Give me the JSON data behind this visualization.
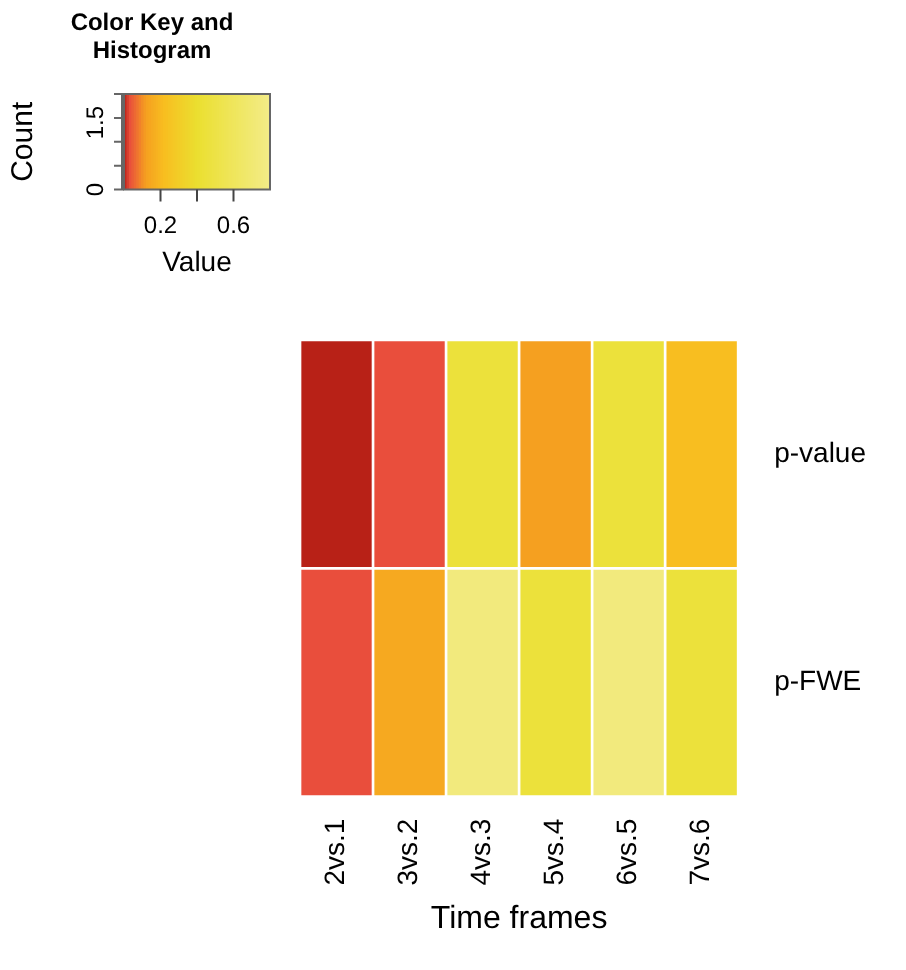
{
  "chart_data": {
    "type": "heatmap",
    "title": "Color Key and Histogram",
    "xlabel": "Time frames",
    "clabel": "Value",
    "categories": [
      "2vs.1",
      "3vs.2",
      "4vs.3",
      "5vs.4",
      "6vs.5",
      "7vs.6"
    ],
    "y_categories": [
      "p-value",
      "p-FWE"
    ],
    "cells": [
      [
        0.002,
        0.03,
        0.45,
        0.12,
        0.45,
        0.22
      ],
      [
        0.03,
        0.15,
        0.75,
        0.45,
        0.75,
        0.45
      ]
    ],
    "clim": [
      0,
      0.8
    ],
    "cticks": [
      0.2,
      {
        "value": 0.4,
        "label": null
      },
      0.6
    ],
    "annotations": [
      "Count",
      "0",
      "1.5"
    ]
  }
}
